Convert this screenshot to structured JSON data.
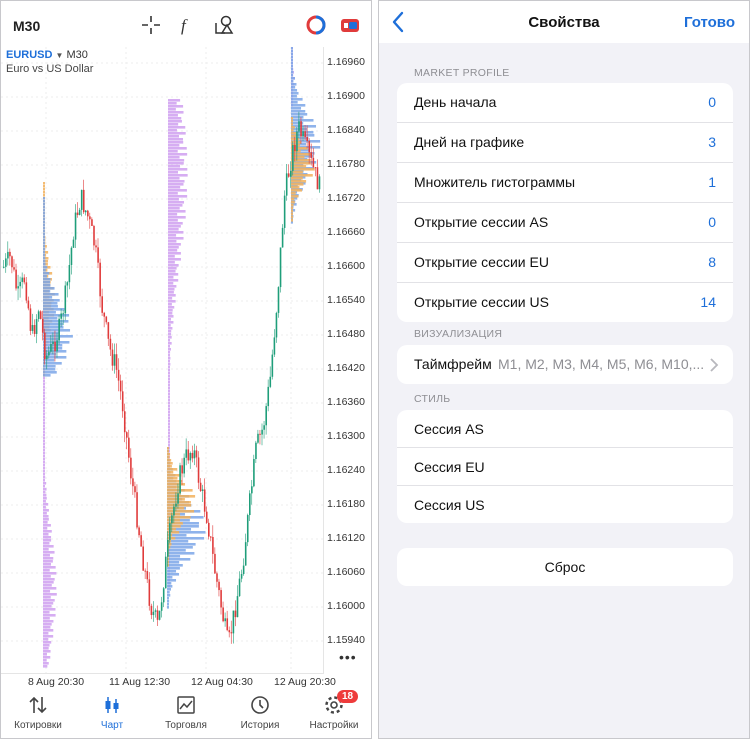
{
  "left": {
    "timeframe": "M30",
    "symbol": "EURUSD",
    "symbol_tf": "M30",
    "symbol_desc": "Euro vs US Dollar",
    "price_labels": [
      "1.16960",
      "1.16900",
      "1.16840",
      "1.16780",
      "1.16720",
      "1.16660",
      "1.16600",
      "1.16540",
      "1.16480",
      "1.16420",
      "1.16360",
      "1.16300",
      "1.16240",
      "1.16180",
      "1.16120",
      "1.16060",
      "1.16000",
      "1.15940"
    ],
    "time_labels": [
      "8 Aug 20:30",
      "11 Aug 12:30",
      "12 Aug 04:30",
      "12 Aug 20:30"
    ],
    "more": "•••",
    "tabs": [
      {
        "label": "Котировки",
        "icon": "quotes-icon"
      },
      {
        "label": "Чарт",
        "icon": "chart-icon"
      },
      {
        "label": "Торговля",
        "icon": "trade-icon"
      },
      {
        "label": "История",
        "icon": "history-icon"
      },
      {
        "label": "Настройки",
        "icon": "settings-icon"
      }
    ],
    "settings_badge": "18",
    "colors": {
      "bull": "#1f9e7a",
      "bear": "#e03b3b",
      "profile_violet": "#cf9ff0",
      "profile_orange": "#f2b05a",
      "profile_blue": "#7ba6e8",
      "accent": "#1e6fd9"
    }
  },
  "right": {
    "title": "Свойства",
    "done": "Готово",
    "market_profile_header": "MARKET PROFILE",
    "market_profile": [
      {
        "label": "День начала",
        "value": "0"
      },
      {
        "label": "Дней на графике",
        "value": "3"
      },
      {
        "label": "Множитель гистограммы",
        "value": "1"
      },
      {
        "label": "Открытие сессии AS",
        "value": "0"
      },
      {
        "label": "Открытие сессии EU",
        "value": "8"
      },
      {
        "label": "Открытие сессии US",
        "value": "14"
      }
    ],
    "viz_header": "ВИЗУАЛИЗАЦИЯ",
    "timeframe_label": "Таймфрейм",
    "timeframe_value": "M1, M2, M3, M4, M5, M6, M10,...",
    "style_header": "СТИЛЬ",
    "styles": [
      "Сессия AS",
      "Сессия EU",
      "Сессия US"
    ],
    "reset": "Сброс"
  }
}
